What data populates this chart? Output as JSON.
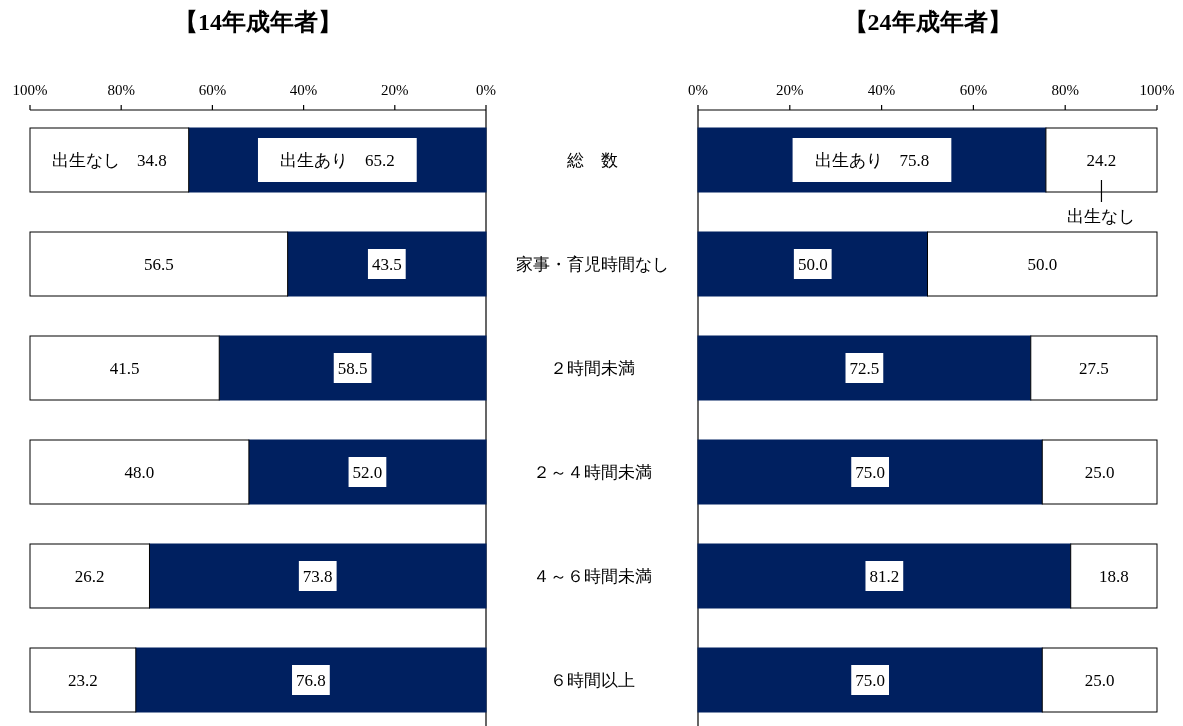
{
  "chart_data": [
    {
      "type": "bar",
      "orientation": "horizontal",
      "stacked": true,
      "title": "【14年成年者】",
      "categories": [
        null,
        null,
        null,
        null,
        null,
        null
      ],
      "series": [
        {
          "name": "出生あり",
          "color": "#002060",
          "values": [
            65.2,
            43.5,
            58.5,
            52.0,
            73.8,
            76.8
          ],
          "value_labels": [
            "65.2",
            "43.5",
            "58.5",
            "52.0",
            "73.8",
            "76.8"
          ]
        },
        {
          "name": "出生なし",
          "color": "#ffffff",
          "values": [
            34.8,
            56.5,
            41.5,
            48.0,
            26.2,
            23.2
          ],
          "value_labels": [
            "34.8",
            "56.5",
            "41.5",
            "48.0",
            "26.2",
            "23.2"
          ]
        }
      ],
      "xlim": [
        100,
        0
      ],
      "xticks": [
        {
          "value": 100,
          "label": "100%"
        },
        {
          "value": 80,
          "label": "80%"
        },
        {
          "value": 60,
          "label": "60%"
        },
        {
          "value": 40,
          "label": "40%"
        },
        {
          "value": 20,
          "label": "20%"
        },
        {
          "value": 0,
          "label": "0%"
        }
      ],
      "tick_labels": "x"
    },
    {
      "type": "bar",
      "orientation": "horizontal",
      "stacked": true,
      "title": "【24年成年者】",
      "tick_labels": "xy",
      "categories": [
        "総　数",
        "家事・育児時間なし",
        "２時間未満",
        "２～４時間未満",
        "４～６時間未満",
        "６時間以上"
      ],
      "series": [
        {
          "name": "出生あり",
          "color": "#002060",
          "values": [
            75.8,
            50.0,
            72.5,
            75.0,
            81.2,
            75.0
          ],
          "value_labels": [
            "75.8",
            "50.0",
            "72.5",
            "75.0",
            "81.2",
            "75.0"
          ]
        },
        {
          "name": "出生なし",
          "color": "#ffffff",
          "values": [
            24.2,
            50.0,
            27.5,
            25.0,
            18.8,
            25.0
          ],
          "value_labels": [
            "24.2",
            "50.0",
            "27.5",
            "25.0",
            "18.8",
            "25.0"
          ]
        }
      ],
      "xlim": [
        0,
        100
      ],
      "xticks": [
        {
          "value": 0,
          "label": "0%"
        },
        {
          "value": 20,
          "label": "20%"
        },
        {
          "value": 40,
          "label": "40%"
        },
        {
          "value": 60,
          "label": "60%"
        },
        {
          "value": 80,
          "label": "80%"
        },
        {
          "value": 100,
          "label": "100%"
        }
      ]
    }
  ]
}
